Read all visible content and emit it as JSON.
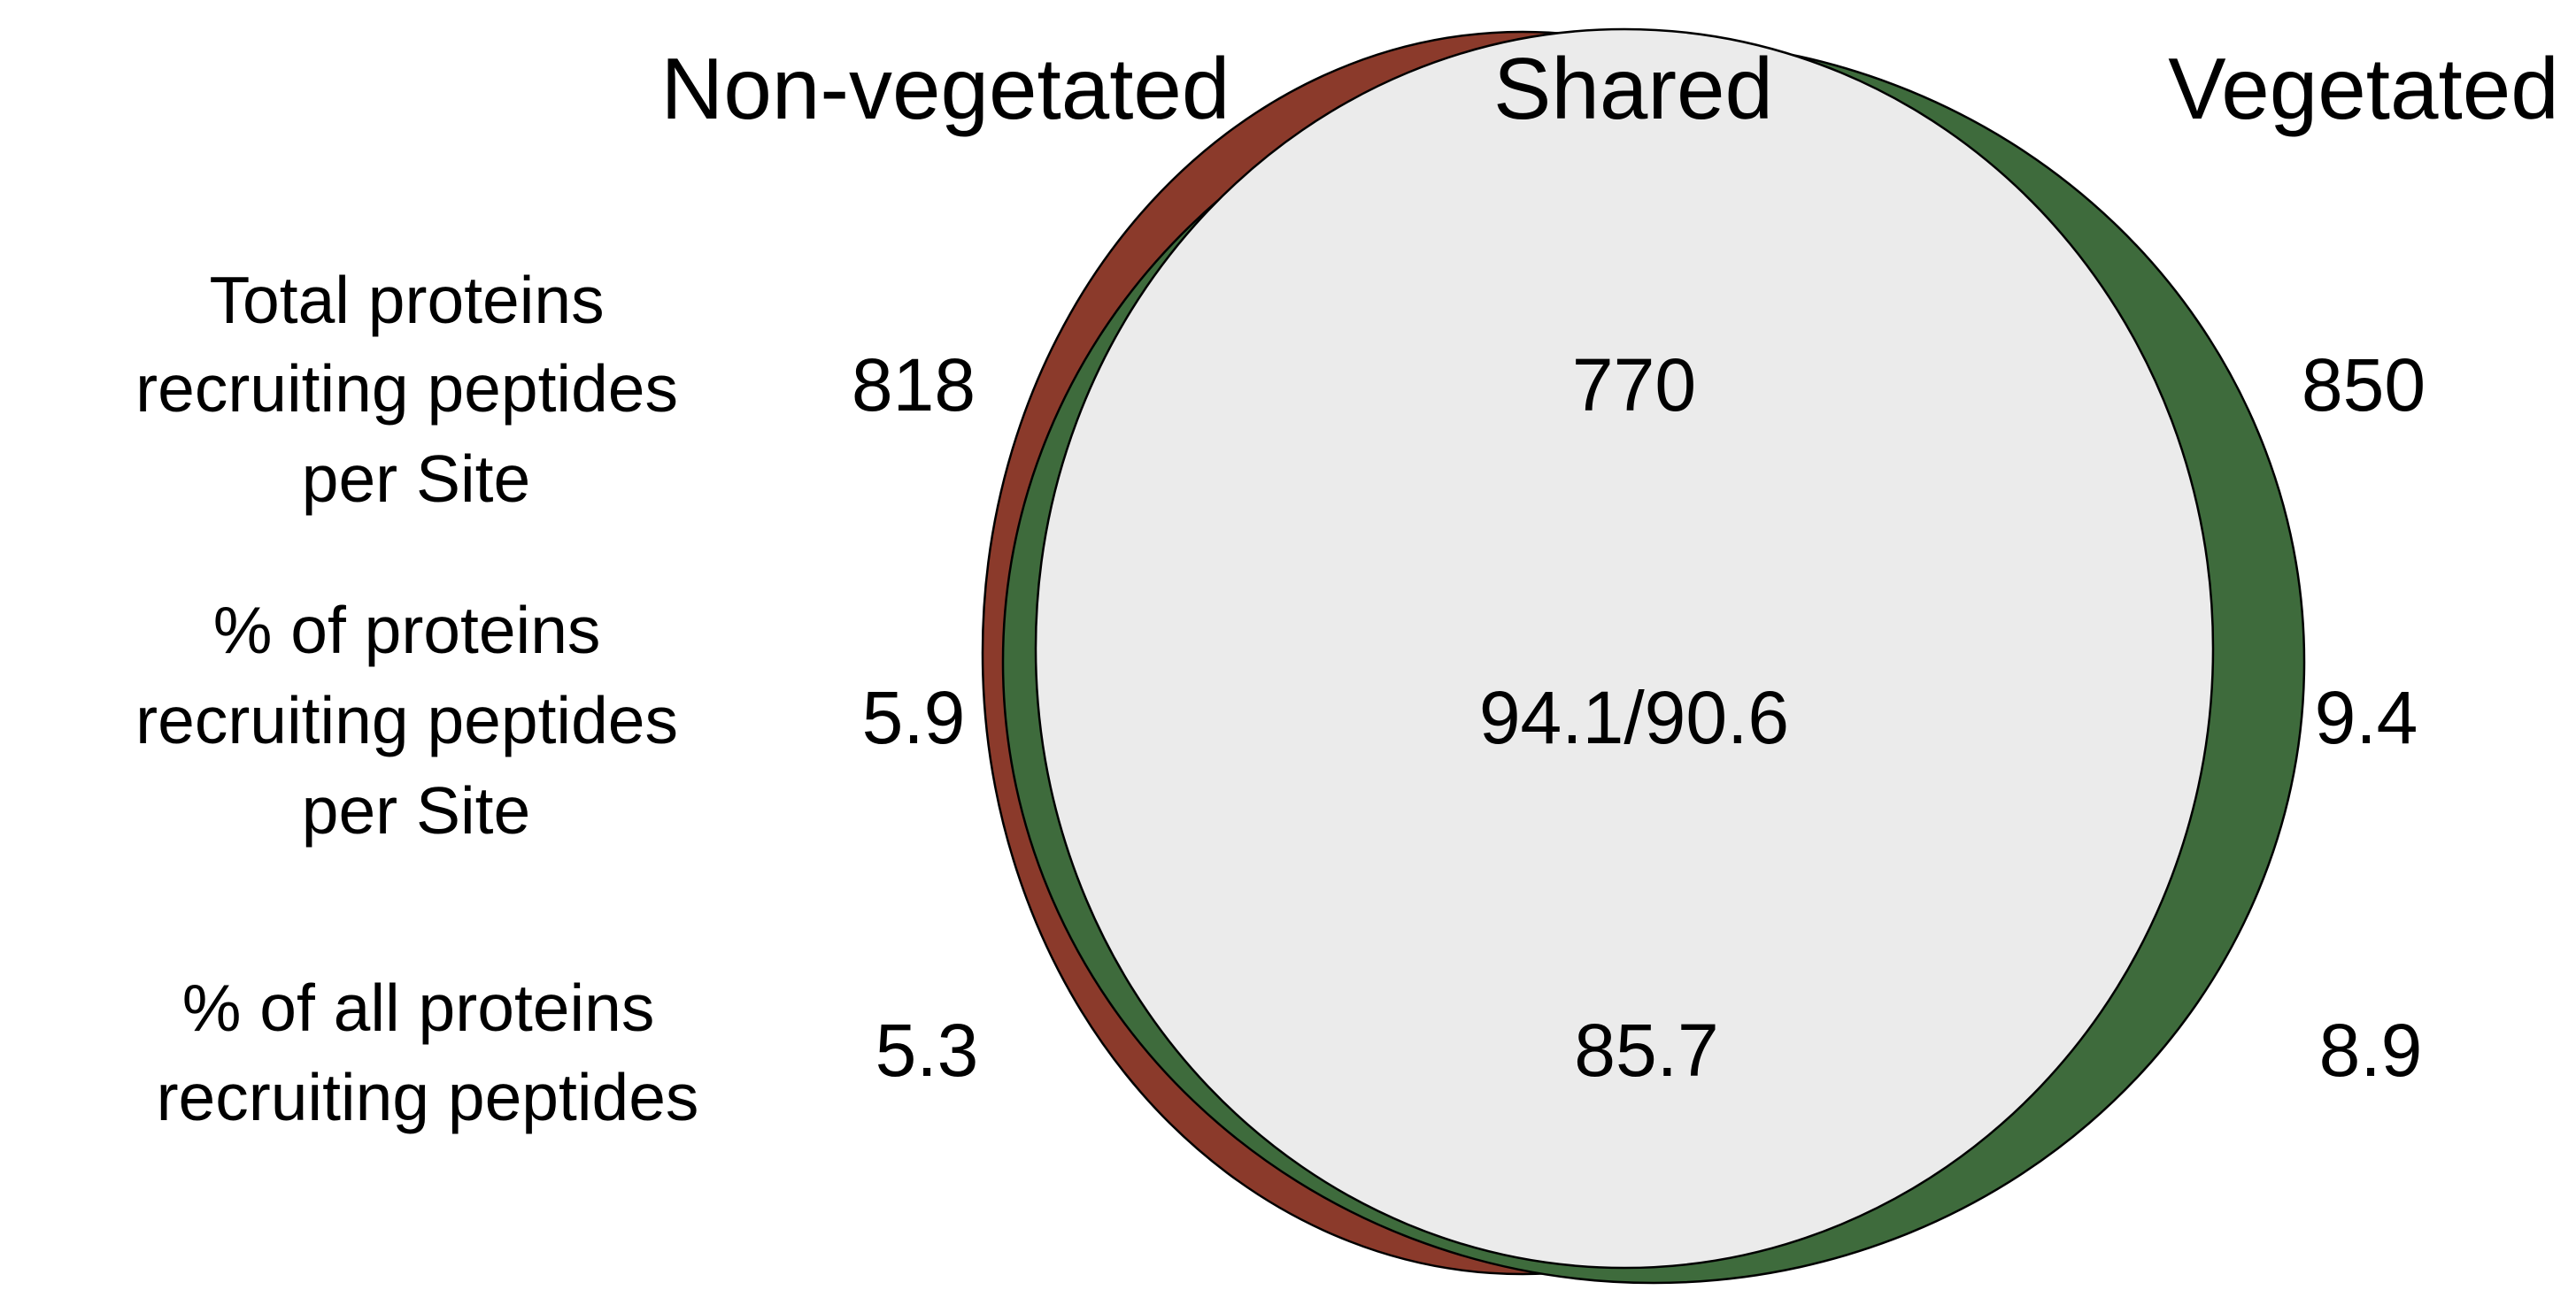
{
  "headers": {
    "left": "Non-vegetated",
    "middle": "Shared",
    "right": "Vegetated"
  },
  "rows": [
    {
      "label_lines": [
        "Total proteins",
        "recruiting peptides",
        "per Site"
      ],
      "left": "818",
      "middle": "770",
      "right": "850"
    },
    {
      "label_lines": [
        "% of proteins",
        "recruiting peptides",
        "per Site"
      ],
      "left": "5.9",
      "middle": "94.1/90.6",
      "right": "9.4"
    },
    {
      "label_lines": [
        "% of all proteins",
        "recruiting peptides"
      ],
      "left": "5.3",
      "middle": "85.7",
      "right": "8.9"
    }
  ],
  "colors": {
    "non_vegetated": "#8b3a2b",
    "vegetated": "#3e6b3c",
    "shared": "#ebebeb",
    "outline": "#000000"
  }
}
